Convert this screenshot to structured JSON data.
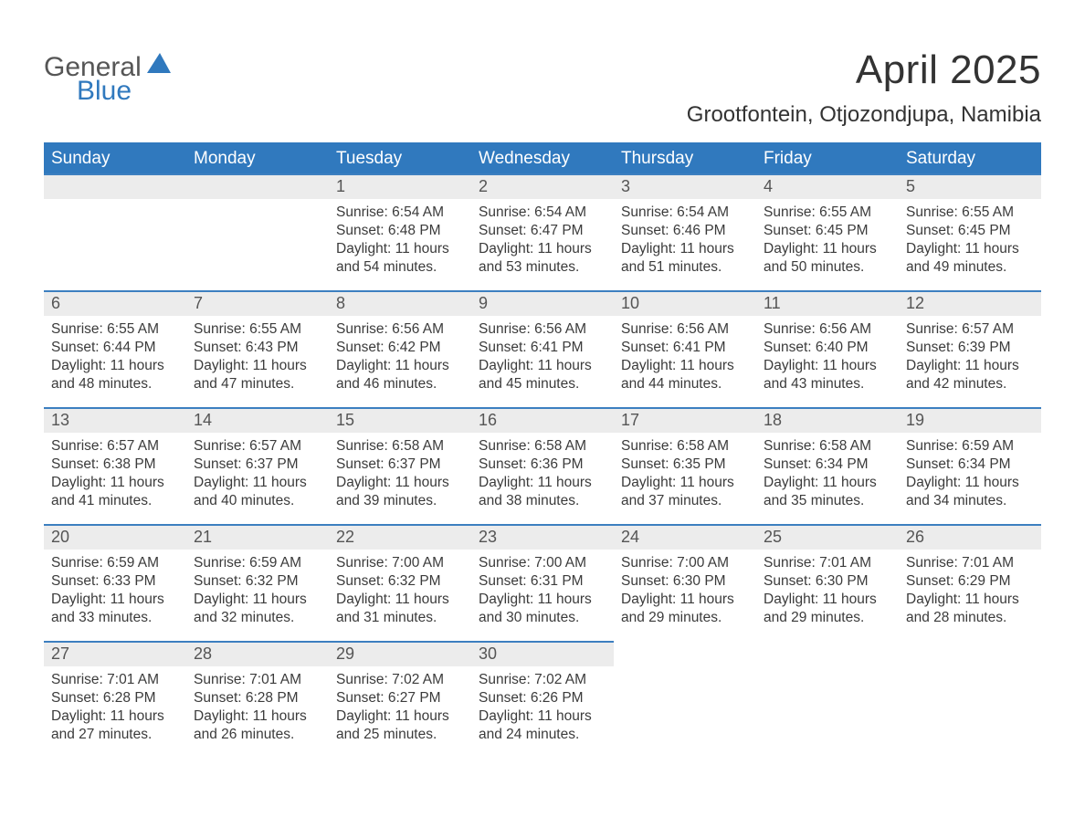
{
  "logo": {
    "text1": "General",
    "text2": "Blue",
    "color_general": "#565656",
    "color_blue": "#3079be",
    "icon_color": "#3079be"
  },
  "header": {
    "title": "April 2025",
    "location": "Grootfontein, Otjozondjupa, Namibia"
  },
  "style": {
    "header_bg": "#3079be",
    "header_text": "#ffffff",
    "daynum_bg": "#ececec",
    "row_border": "#3c7fc0",
    "text_color": "#333333",
    "body_font_size": 15.5,
    "title_font_size": 44,
    "location_font_size": 24,
    "dayheader_font_size": 19
  },
  "day_headers": [
    "Sunday",
    "Monday",
    "Tuesday",
    "Wednesday",
    "Thursday",
    "Friday",
    "Saturday"
  ],
  "weeks": [
    [
      null,
      null,
      {
        "n": "1",
        "sr": "6:54 AM",
        "ss": "6:48 PM",
        "dl": "11 hours and 54 minutes."
      },
      {
        "n": "2",
        "sr": "6:54 AM",
        "ss": "6:47 PM",
        "dl": "11 hours and 53 minutes."
      },
      {
        "n": "3",
        "sr": "6:54 AM",
        "ss": "6:46 PM",
        "dl": "11 hours and 51 minutes."
      },
      {
        "n": "4",
        "sr": "6:55 AM",
        "ss": "6:45 PM",
        "dl": "11 hours and 50 minutes."
      },
      {
        "n": "5",
        "sr": "6:55 AM",
        "ss": "6:45 PM",
        "dl": "11 hours and 49 minutes."
      }
    ],
    [
      {
        "n": "6",
        "sr": "6:55 AM",
        "ss": "6:44 PM",
        "dl": "11 hours and 48 minutes."
      },
      {
        "n": "7",
        "sr": "6:55 AM",
        "ss": "6:43 PM",
        "dl": "11 hours and 47 minutes."
      },
      {
        "n": "8",
        "sr": "6:56 AM",
        "ss": "6:42 PM",
        "dl": "11 hours and 46 minutes."
      },
      {
        "n": "9",
        "sr": "6:56 AM",
        "ss": "6:41 PM",
        "dl": "11 hours and 45 minutes."
      },
      {
        "n": "10",
        "sr": "6:56 AM",
        "ss": "6:41 PM",
        "dl": "11 hours and 44 minutes."
      },
      {
        "n": "11",
        "sr": "6:56 AM",
        "ss": "6:40 PM",
        "dl": "11 hours and 43 minutes."
      },
      {
        "n": "12",
        "sr": "6:57 AM",
        "ss": "6:39 PM",
        "dl": "11 hours and 42 minutes."
      }
    ],
    [
      {
        "n": "13",
        "sr": "6:57 AM",
        "ss": "6:38 PM",
        "dl": "11 hours and 41 minutes."
      },
      {
        "n": "14",
        "sr": "6:57 AM",
        "ss": "6:37 PM",
        "dl": "11 hours and 40 minutes."
      },
      {
        "n": "15",
        "sr": "6:58 AM",
        "ss": "6:37 PM",
        "dl": "11 hours and 39 minutes."
      },
      {
        "n": "16",
        "sr": "6:58 AM",
        "ss": "6:36 PM",
        "dl": "11 hours and 38 minutes."
      },
      {
        "n": "17",
        "sr": "6:58 AM",
        "ss": "6:35 PM",
        "dl": "11 hours and 37 minutes."
      },
      {
        "n": "18",
        "sr": "6:58 AM",
        "ss": "6:34 PM",
        "dl": "11 hours and 35 minutes."
      },
      {
        "n": "19",
        "sr": "6:59 AM",
        "ss": "6:34 PM",
        "dl": "11 hours and 34 minutes."
      }
    ],
    [
      {
        "n": "20",
        "sr": "6:59 AM",
        "ss": "6:33 PM",
        "dl": "11 hours and 33 minutes."
      },
      {
        "n": "21",
        "sr": "6:59 AM",
        "ss": "6:32 PM",
        "dl": "11 hours and 32 minutes."
      },
      {
        "n": "22",
        "sr": "7:00 AM",
        "ss": "6:32 PM",
        "dl": "11 hours and 31 minutes."
      },
      {
        "n": "23",
        "sr": "7:00 AM",
        "ss": "6:31 PM",
        "dl": "11 hours and 30 minutes."
      },
      {
        "n": "24",
        "sr": "7:00 AM",
        "ss": "6:30 PM",
        "dl": "11 hours and 29 minutes."
      },
      {
        "n": "25",
        "sr": "7:01 AM",
        "ss": "6:30 PM",
        "dl": "11 hours and 29 minutes."
      },
      {
        "n": "26",
        "sr": "7:01 AM",
        "ss": "6:29 PM",
        "dl": "11 hours and 28 minutes."
      }
    ],
    [
      {
        "n": "27",
        "sr": "7:01 AM",
        "ss": "6:28 PM",
        "dl": "11 hours and 27 minutes."
      },
      {
        "n": "28",
        "sr": "7:01 AM",
        "ss": "6:28 PM",
        "dl": "11 hours and 26 minutes."
      },
      {
        "n": "29",
        "sr": "7:02 AM",
        "ss": "6:27 PM",
        "dl": "11 hours and 25 minutes."
      },
      {
        "n": "30",
        "sr": "7:02 AM",
        "ss": "6:26 PM",
        "dl": "11 hours and 24 minutes."
      },
      null,
      null,
      null
    ]
  ],
  "labels": {
    "sunrise": "Sunrise: ",
    "sunset": "Sunset: ",
    "daylight": "Daylight: "
  }
}
